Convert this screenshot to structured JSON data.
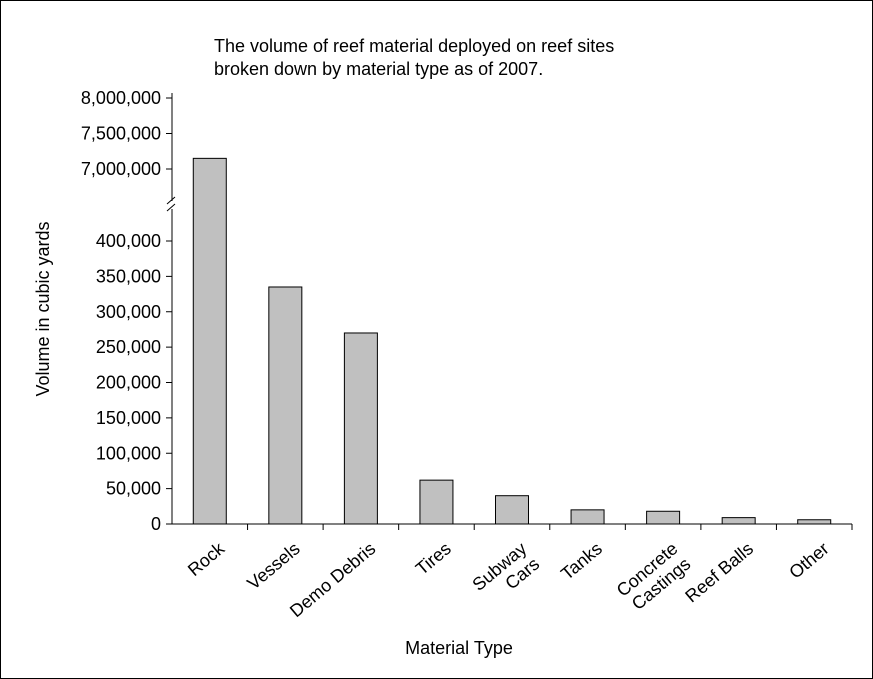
{
  "chart_data": {
    "type": "bar",
    "title_lines": [
      "The volume of reef material deployed on reef sites",
      "broken down by material type as of 2007."
    ],
    "xlabel": "Material Type",
    "ylabel": "Volume in cubic yards",
    "categories": [
      [
        "Rock"
      ],
      [
        "Vessels"
      ],
      [
        "Demo Debris"
      ],
      [
        "Tires"
      ],
      [
        "Subway",
        "Cars"
      ],
      [
        "Tanks"
      ],
      [
        "Concrete",
        "Castings"
      ],
      [
        "Reef Balls"
      ],
      [
        "Other"
      ]
    ],
    "values": [
      7150000,
      335000,
      270000,
      62000,
      40000,
      20000,
      18000,
      9000,
      6000
    ],
    "y_lower_ticks": [
      "0",
      "50,000",
      "100,000",
      "150,000",
      "200,000",
      "250,000",
      "300,000",
      "350,000",
      "400,000"
    ],
    "y_upper_ticks": [
      "7,000,000",
      "7,500,000",
      "8,000,000"
    ],
    "y_lower_range": [
      0,
      400000
    ],
    "y_upper_range": [
      7000000,
      8000000
    ],
    "axis_break": true,
    "grid": false,
    "bar_color": "#c0c0c0",
    "bar_edge_color": "#000000"
  }
}
